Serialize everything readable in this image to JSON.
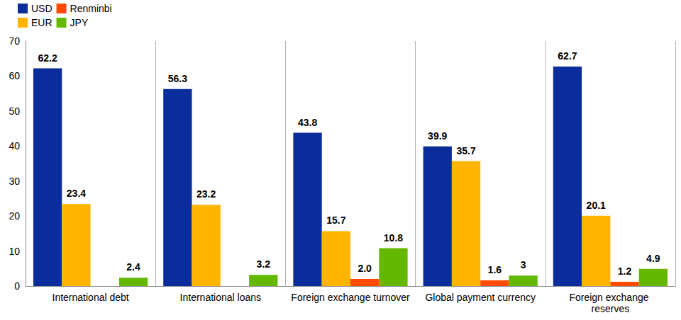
{
  "chart_data": {
    "type": "bar",
    "categories": [
      "International debt",
      "International loans",
      "Foreign exchange turnover",
      "Global payment currency",
      "Foreign exchange reserves"
    ],
    "series": [
      {
        "name": "USD",
        "color": "#0a2d9b",
        "values": [
          62.2,
          56.3,
          43.8,
          39.9,
          62.7
        ]
      },
      {
        "name": "EUR",
        "color": "#ffb400",
        "values": [
          23.4,
          23.2,
          15.7,
          35.7,
          20.1
        ]
      },
      {
        "name": "Renminbi",
        "color": "#ff4b00",
        "values": [
          null,
          null,
          2.0,
          1.6,
          1.2
        ],
        "value_labels": [
          null,
          null,
          "2.0",
          "1.6",
          "1.2"
        ]
      },
      {
        "name": "JPY",
        "color": "#65b800",
        "values": [
          2.4,
          3.2,
          10.8,
          3.0,
          4.9
        ]
      }
    ],
    "ylim": [
      0,
      70
    ],
    "yticks": [
      0,
      10,
      20,
      30,
      40,
      50,
      60,
      70
    ],
    "grid": true,
    "legend": "top-left",
    "data_labels": true
  }
}
